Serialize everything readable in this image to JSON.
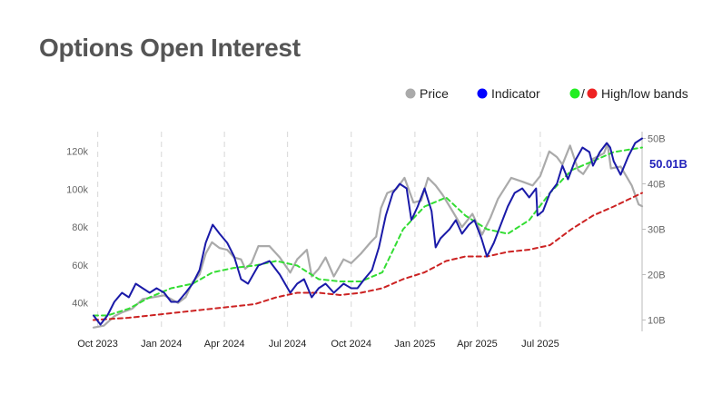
{
  "title": "Options Open Interest",
  "colors": {
    "price": "#aaaaaa",
    "indicator": "#1a1aa8",
    "high_band": "#33dd33",
    "low_band": "#cc2222",
    "legend_indicator_dot": "#0000ff",
    "legend_high_dot": "#22ee22",
    "legend_low_dot": "#ee2222",
    "gridline": "#dddddd",
    "axis": "#bbbbbb"
  },
  "legend": {
    "price_label": "Price",
    "indicator_label": "Indicator",
    "bands_separator": "/",
    "bands_label": "High/low bands"
  },
  "last_value_label": "50.01B",
  "chart_data": {
    "type": "line",
    "x_domain": [
      "2023-09-25",
      "2025-11-25"
    ],
    "x_ticks": [
      {
        "date": "2023-10-01",
        "label": "Oct 2023"
      },
      {
        "date": "2024-01-01",
        "label": "Jan 2024"
      },
      {
        "date": "2024-04-01",
        "label": "Apr 2024"
      },
      {
        "date": "2024-07-01",
        "label": "Jul 2024"
      },
      {
        "date": "2024-10-01",
        "label": "Oct 2024"
      },
      {
        "date": "2025-01-01",
        "label": "Jan 2025"
      },
      {
        "date": "2025-04-01",
        "label": "Apr 2025"
      },
      {
        "date": "2025-07-01",
        "label": "Jul 2025"
      }
    ],
    "y_left": {
      "range": [
        25000,
        128000
      ],
      "ticks": [
        {
          "value": 40000,
          "label": "40k"
        },
        {
          "value": 60000,
          "label": "60k"
        },
        {
          "value": 80000,
          "label": "80k"
        },
        {
          "value": 100000,
          "label": "100k"
        },
        {
          "value": 120000,
          "label": "120k"
        }
      ]
    },
    "y_right": {
      "range": [
        7.5,
        50.5
      ],
      "ticks": [
        {
          "value": 10,
          "label": "10B"
        },
        {
          "value": 20,
          "label": "20B"
        },
        {
          "value": 30,
          "label": "30B"
        },
        {
          "value": 40,
          "label": "40B"
        },
        {
          "value": 50,
          "label": "50B"
        }
      ]
    },
    "grid": {
      "vertical_dashed": true,
      "horizontal": false
    },
    "legend_placement": "top-right",
    "series": [
      {
        "name": "Price",
        "axis": "left",
        "points": [
          [
            "2023-09-25",
            27000
          ],
          [
            "2023-10-10",
            28000
          ],
          [
            "2023-10-25",
            33000
          ],
          [
            "2023-11-05",
            35000
          ],
          [
            "2023-11-20",
            37000
          ],
          [
            "2023-12-05",
            42000
          ],
          [
            "2023-12-20",
            43000
          ],
          [
            "2024-01-05",
            44000
          ],
          [
            "2024-01-15",
            42000
          ],
          [
            "2024-01-25",
            40000
          ],
          [
            "2024-02-05",
            43000
          ],
          [
            "2024-02-15",
            51000
          ],
          [
            "2024-02-25",
            55000
          ],
          [
            "2024-03-05",
            66000
          ],
          [
            "2024-03-14",
            72000
          ],
          [
            "2024-03-25",
            69000
          ],
          [
            "2024-04-05",
            68000
          ],
          [
            "2024-04-15",
            64000
          ],
          [
            "2024-04-25",
            63000
          ],
          [
            "2024-05-01",
            58000
          ],
          [
            "2024-05-10",
            61000
          ],
          [
            "2024-05-20",
            70000
          ],
          [
            "2024-06-05",
            70000
          ],
          [
            "2024-06-20",
            64000
          ],
          [
            "2024-07-05",
            56000
          ],
          [
            "2024-07-15",
            63000
          ],
          [
            "2024-07-29",
            68000
          ],
          [
            "2024-08-05",
            54000
          ],
          [
            "2024-08-15",
            58000
          ],
          [
            "2024-08-25",
            64000
          ],
          [
            "2024-09-06",
            54000
          ],
          [
            "2024-09-20",
            63000
          ],
          [
            "2024-10-01",
            61000
          ],
          [
            "2024-10-15",
            66000
          ],
          [
            "2024-10-29",
            72000
          ],
          [
            "2024-11-06",
            75000
          ],
          [
            "2024-11-13",
            90000
          ],
          [
            "2024-11-22",
            98000
          ],
          [
            "2024-12-05",
            100000
          ],
          [
            "2024-12-17",
            106000
          ],
          [
            "2024-12-30",
            93000
          ],
          [
            "2025-01-10",
            94000
          ],
          [
            "2025-01-20",
            106000
          ],
          [
            "2025-01-31",
            102000
          ],
          [
            "2025-02-10",
            97000
          ],
          [
            "2025-02-25",
            88000
          ],
          [
            "2025-03-10",
            80000
          ],
          [
            "2025-03-25",
            87000
          ],
          [
            "2025-04-08",
            76000
          ],
          [
            "2025-04-20",
            85000
          ],
          [
            "2025-05-01",
            95000
          ],
          [
            "2025-05-20",
            106000
          ],
          [
            "2025-06-05",
            104000
          ],
          [
            "2025-06-20",
            102000
          ],
          [
            "2025-07-01",
            107000
          ],
          [
            "2025-07-14",
            120000
          ],
          [
            "2025-07-25",
            117000
          ],
          [
            "2025-08-02",
            113000
          ],
          [
            "2025-08-13",
            123000
          ],
          [
            "2025-08-25",
            110000
          ],
          [
            "2025-09-01",
            108000
          ],
          [
            "2025-09-15",
            116000
          ],
          [
            "2025-10-01",
            119000
          ],
          [
            "2025-10-06",
            124000
          ],
          [
            "2025-10-11",
            111000
          ],
          [
            "2025-10-25",
            112000
          ],
          [
            "2025-11-10",
            102000
          ],
          [
            "2025-11-20",
            92000
          ],
          [
            "2025-11-25",
            91000
          ]
        ]
      },
      {
        "name": "Indicator",
        "axis": "right",
        "points": [
          [
            "2023-09-25",
            11
          ],
          [
            "2023-10-05",
            9
          ],
          [
            "2023-10-15",
            11
          ],
          [
            "2023-10-25",
            14
          ],
          [
            "2023-11-05",
            16
          ],
          [
            "2023-11-15",
            15
          ],
          [
            "2023-11-25",
            18
          ],
          [
            "2023-12-05",
            17
          ],
          [
            "2023-12-15",
            16
          ],
          [
            "2023-12-25",
            17
          ],
          [
            "2024-01-05",
            16
          ],
          [
            "2024-01-15",
            14
          ],
          [
            "2024-01-25",
            14
          ],
          [
            "2024-02-05",
            16
          ],
          [
            "2024-02-15",
            18
          ],
          [
            "2024-02-25",
            21
          ],
          [
            "2024-03-05",
            27
          ],
          [
            "2024-03-15",
            31
          ],
          [
            "2024-03-25",
            29
          ],
          [
            "2024-04-05",
            27
          ],
          [
            "2024-04-15",
            24
          ],
          [
            "2024-04-25",
            19
          ],
          [
            "2024-05-05",
            18
          ],
          [
            "2024-05-20",
            22
          ],
          [
            "2024-06-05",
            23
          ],
          [
            "2024-06-20",
            20
          ],
          [
            "2024-07-05",
            16
          ],
          [
            "2024-07-15",
            18
          ],
          [
            "2024-07-25",
            19
          ],
          [
            "2024-08-05",
            15
          ],
          [
            "2024-08-15",
            17
          ],
          [
            "2024-08-25",
            18
          ],
          [
            "2024-09-06",
            16
          ],
          [
            "2024-09-20",
            18
          ],
          [
            "2024-10-01",
            17
          ],
          [
            "2024-10-10",
            17
          ],
          [
            "2024-10-20",
            19
          ],
          [
            "2024-10-31",
            21
          ],
          [
            "2024-11-10",
            26
          ],
          [
            "2024-11-20",
            33
          ],
          [
            "2024-11-30",
            38
          ],
          [
            "2024-12-10",
            40
          ],
          [
            "2024-12-20",
            39
          ],
          [
            "2024-12-27",
            32
          ],
          [
            "2025-01-05",
            35
          ],
          [
            "2025-01-15",
            39
          ],
          [
            "2025-01-25",
            34
          ],
          [
            "2025-01-31",
            26
          ],
          [
            "2025-02-07",
            28
          ],
          [
            "2025-02-20",
            30
          ],
          [
            "2025-03-01",
            32
          ],
          [
            "2025-03-10",
            29
          ],
          [
            "2025-03-20",
            31
          ],
          [
            "2025-03-28",
            32
          ],
          [
            "2025-04-07",
            28
          ],
          [
            "2025-04-15",
            24
          ],
          [
            "2025-04-25",
            27
          ],
          [
            "2025-05-05",
            31
          ],
          [
            "2025-05-15",
            35
          ],
          [
            "2025-05-25",
            38
          ],
          [
            "2025-06-05",
            39
          ],
          [
            "2025-06-15",
            37
          ],
          [
            "2025-06-25",
            39
          ],
          [
            "2025-06-27",
            33
          ],
          [
            "2025-07-05",
            34
          ],
          [
            "2025-07-15",
            38
          ],
          [
            "2025-07-25",
            40
          ],
          [
            "2025-08-02",
            44
          ],
          [
            "2025-08-10",
            41
          ],
          [
            "2025-08-20",
            45
          ],
          [
            "2025-08-31",
            48
          ],
          [
            "2025-09-10",
            47
          ],
          [
            "2025-09-15",
            44
          ],
          [
            "2025-09-25",
            47
          ],
          [
            "2025-10-05",
            49
          ],
          [
            "2025-10-10",
            48
          ],
          [
            "2025-10-15",
            45
          ],
          [
            "2025-10-25",
            42
          ],
          [
            "2025-11-05",
            46
          ],
          [
            "2025-11-15",
            49
          ],
          [
            "2025-11-25",
            50.01
          ]
        ]
      },
      {
        "name": "High band",
        "axis": "right",
        "points": [
          [
            "2023-09-25",
            11
          ],
          [
            "2023-10-15",
            11
          ],
          [
            "2023-11-15",
            12.5
          ],
          [
            "2023-12-15",
            15
          ],
          [
            "2024-01-15",
            17
          ],
          [
            "2024-02-15",
            18
          ],
          [
            "2024-03-15",
            20.5
          ],
          [
            "2024-04-15",
            21.5
          ],
          [
            "2024-05-15",
            22
          ],
          [
            "2024-06-15",
            23
          ],
          [
            "2024-07-15",
            22
          ],
          [
            "2024-08-15",
            19
          ],
          [
            "2024-09-15",
            18.5
          ],
          [
            "2024-10-15",
            18.5
          ],
          [
            "2024-11-15",
            20.5
          ],
          [
            "2024-12-15",
            30
          ],
          [
            "2025-01-15",
            35
          ],
          [
            "2025-02-15",
            37
          ],
          [
            "2025-03-15",
            33
          ],
          [
            "2025-04-15",
            30
          ],
          [
            "2025-05-15",
            29
          ],
          [
            "2025-06-15",
            32
          ],
          [
            "2025-07-15",
            38
          ],
          [
            "2025-08-15",
            43
          ],
          [
            "2025-09-15",
            45
          ],
          [
            "2025-10-15",
            47
          ],
          [
            "2025-11-25",
            48
          ]
        ]
      },
      {
        "name": "Low band",
        "axis": "right",
        "points": [
          [
            "2023-09-25",
            10
          ],
          [
            "2023-11-15",
            10.5
          ],
          [
            "2024-01-15",
            11.5
          ],
          [
            "2024-03-15",
            12.5
          ],
          [
            "2024-05-15",
            13.5
          ],
          [
            "2024-06-15",
            15
          ],
          [
            "2024-07-15",
            16
          ],
          [
            "2024-08-15",
            16
          ],
          [
            "2024-09-15",
            15.5
          ],
          [
            "2024-10-15",
            16
          ],
          [
            "2024-11-15",
            17
          ],
          [
            "2024-12-15",
            19
          ],
          [
            "2025-01-15",
            20.5
          ],
          [
            "2025-02-15",
            23
          ],
          [
            "2025-03-15",
            24
          ],
          [
            "2025-04-15",
            24
          ],
          [
            "2025-05-15",
            25
          ],
          [
            "2025-06-15",
            25.5
          ],
          [
            "2025-07-15",
            26.5
          ],
          [
            "2025-08-15",
            30
          ],
          [
            "2025-09-15",
            33
          ],
          [
            "2025-10-15",
            35
          ],
          [
            "2025-11-25",
            38
          ]
        ]
      }
    ]
  }
}
